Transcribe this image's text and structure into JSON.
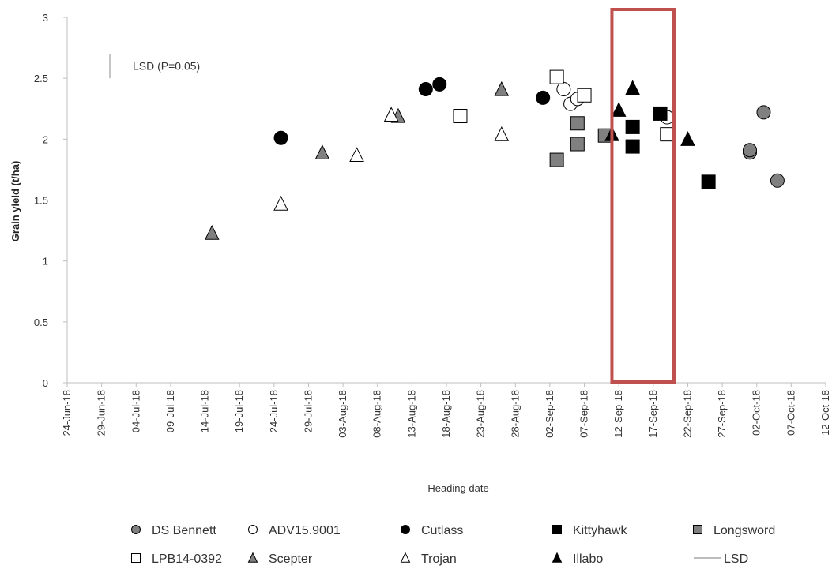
{
  "chart_data": {
    "type": "scatter",
    "xlabel": "Heading date",
    "ylabel": "Grain yield  (t/ha)",
    "ylim": [
      0,
      3
    ],
    "yticks": [
      "0",
      "0.5",
      "1",
      "1.5",
      "2",
      "2.5",
      "3"
    ],
    "xlim": [
      "2018-06-24",
      "2018-10-12"
    ],
    "xticks": [
      "24-Jun-18",
      "29-Jun-18",
      "04-Jul-18",
      "09-Jul-18",
      "14-Jul-18",
      "19-Jul-18",
      "24-Jul-18",
      "29-Jul-18",
      "03-Aug-18",
      "08-Aug-18",
      "13-Aug-18",
      "18-Aug-18",
      "23-Aug-18",
      "28-Aug-18",
      "02-Sep-18",
      "07-Sep-18",
      "12-Sep-18",
      "17-Sep-18",
      "22-Sep-18",
      "27-Sep-18",
      "02-Oct-18",
      "07-Oct-18",
      "12-Oct-18"
    ],
    "grid": false,
    "legend_position": "bottom",
    "lsd_label": "LSD (P=0.05)",
    "lsd_value": 0.2,
    "highlight_range": [
      "2018-09-11",
      "2018-09-20"
    ],
    "highlight_color": "#c0504d",
    "series": [
      {
        "name": "DS Bennett",
        "marker": "circle",
        "color": "#808080",
        "points": [
          {
            "x": "2018-10-01",
            "y": 1.89
          },
          {
            "x": "2018-10-01",
            "y": 1.91
          },
          {
            "x": "2018-10-03",
            "y": 2.22
          },
          {
            "x": "2018-10-05",
            "y": 1.66
          }
        ]
      },
      {
        "name": "ADV15.9001",
        "marker": "circle",
        "color": "#ffffff",
        "points": [
          {
            "x": "2018-09-04",
            "y": 2.41
          },
          {
            "x": "2018-09-05",
            "y": 2.29
          },
          {
            "x": "2018-09-06",
            "y": 2.33
          },
          {
            "x": "2018-09-19",
            "y": 2.18
          }
        ]
      },
      {
        "name": "Cutlass",
        "marker": "circle",
        "color": "#000000",
        "points": [
          {
            "x": "2018-07-25",
            "y": 2.01
          },
          {
            "x": "2018-08-15",
            "y": 2.41
          },
          {
            "x": "2018-08-17",
            "y": 2.45
          },
          {
            "x": "2018-09-01",
            "y": 2.34
          }
        ]
      },
      {
        "name": "Kittyhawk",
        "marker": "square",
        "color": "#000000",
        "points": [
          {
            "x": "2018-09-14",
            "y": 2.1
          },
          {
            "x": "2018-09-14",
            "y": 1.94
          },
          {
            "x": "2018-09-18",
            "y": 2.21
          },
          {
            "x": "2018-09-25",
            "y": 1.65
          }
        ]
      },
      {
        "name": "Longsword",
        "marker": "square",
        "color": "#808080",
        "points": [
          {
            "x": "2018-09-03",
            "y": 1.83
          },
          {
            "x": "2018-09-06",
            "y": 2.13
          },
          {
            "x": "2018-09-06",
            "y": 1.96
          },
          {
            "x": "2018-09-10",
            "y": 2.03
          }
        ]
      },
      {
        "name": "LPB14-0392",
        "marker": "square",
        "color": "#ffffff",
        "points": [
          {
            "x": "2018-08-20",
            "y": 2.19
          },
          {
            "x": "2018-09-03",
            "y": 2.51
          },
          {
            "x": "2018-09-07",
            "y": 2.36
          },
          {
            "x": "2018-09-19",
            "y": 2.04
          }
        ]
      },
      {
        "name": "Scepter",
        "marker": "triangle",
        "color": "#808080",
        "points": [
          {
            "x": "2018-07-15",
            "y": 1.23
          },
          {
            "x": "2018-07-31",
            "y": 1.89
          },
          {
            "x": "2018-08-11",
            "y": 2.19
          },
          {
            "x": "2018-08-26",
            "y": 2.41
          }
        ]
      },
      {
        "name": "Trojan",
        "marker": "triangle",
        "color": "#ffffff",
        "points": [
          {
            "x": "2018-07-25",
            "y": 1.47
          },
          {
            "x": "2018-08-05",
            "y": 1.87
          },
          {
            "x": "2018-08-10",
            "y": 2.2
          },
          {
            "x": "2018-08-26",
            "y": 2.04
          }
        ]
      },
      {
        "name": "Illabo",
        "marker": "triangle",
        "color": "#000000",
        "points": [
          {
            "x": "2018-09-11",
            "y": 2.04
          },
          {
            "x": "2018-09-12",
            "y": 2.24
          },
          {
            "x": "2018-09-14",
            "y": 2.42
          },
          {
            "x": "2018-09-22",
            "y": 2.0
          }
        ]
      },
      {
        "name": "LSD",
        "marker": "line",
        "color": "#a6a6a6",
        "points": []
      }
    ]
  }
}
